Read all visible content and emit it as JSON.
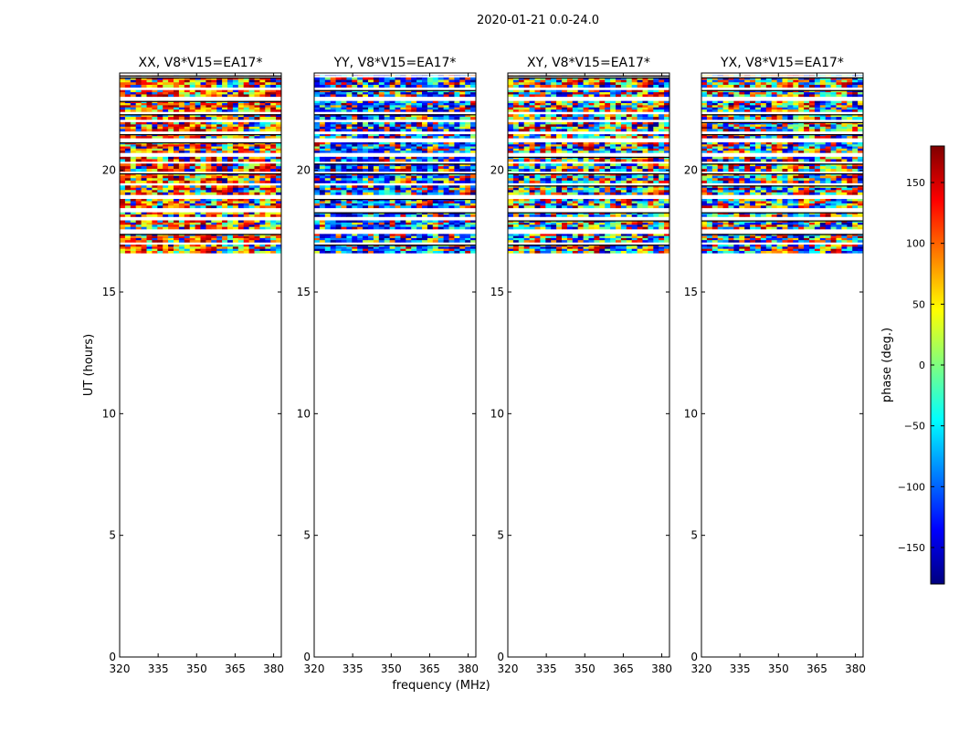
{
  "figure": {
    "suptitle": "2020-01-21 0.0-24.0",
    "xlabel": "frequency (MHz)",
    "ylabel": "UT (hours)"
  },
  "colorbar": {
    "label": "phase (deg.)",
    "range": [
      -180,
      180
    ],
    "ticks": [
      150,
      100,
      50,
      0,
      -50,
      -100,
      -150
    ],
    "tick_labels": [
      "150",
      "100",
      "50",
      "0",
      "−50",
      "−100",
      "−150"
    ],
    "colormap": "jet",
    "colors": [
      "#00007f",
      "#0000ff",
      "#007fff",
      "#00ffff",
      "#7fff7f",
      "#ffff00",
      "#ff7f00",
      "#ff0000",
      "#7f0000"
    ]
  },
  "chart_data": {
    "type": "heatmap",
    "xlim": [
      320,
      383
    ],
    "ylim": [
      0,
      24
    ],
    "xticks": [
      320,
      335,
      350,
      365,
      380
    ],
    "yticks": [
      0,
      5,
      10,
      15,
      20
    ],
    "data_extent_hours": [
      16.6,
      24.0
    ],
    "panels": [
      {
        "title": "XX, V8*V15=EA17*",
        "tone": "red"
      },
      {
        "title": "YY, V8*V15=EA17*",
        "tone": "blue"
      },
      {
        "title": "XY, V8*V15=EA17*",
        "tone": "mixed"
      },
      {
        "title": "YX, V8*V15=EA17*",
        "tone": "mixed"
      }
    ]
  }
}
